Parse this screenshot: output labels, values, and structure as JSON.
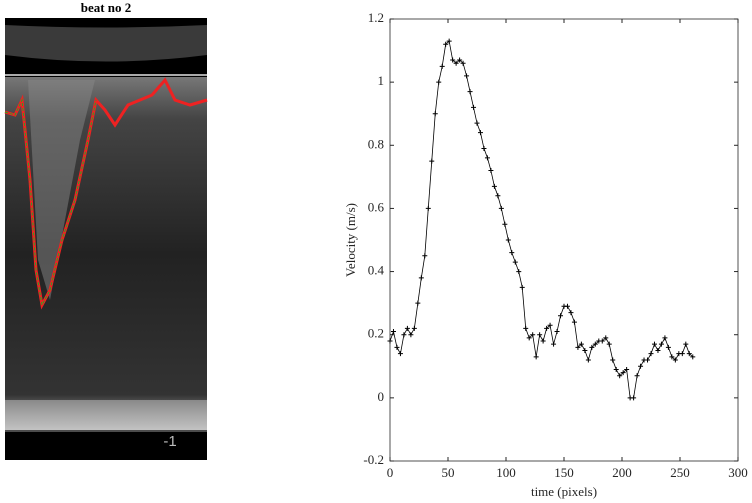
{
  "image": {
    "title": "beat no 2",
    "label": "-1"
  },
  "chart_data": {
    "type": "line",
    "xlabel": "time (pixels)",
    "ylabel": "Velocity (m/s)",
    "xlim": [
      0,
      300
    ],
    "xticks": [
      0,
      50,
      100,
      150,
      200,
      250,
      300
    ],
    "ylim": [
      -0.2,
      1.2
    ],
    "yticks": [
      -0.2,
      0,
      0.2,
      0.4,
      0.6,
      0.8,
      1,
      1.2
    ],
    "series": [
      {
        "color": "#000000",
        "x": [
          0,
          3,
          6,
          9,
          12,
          15,
          18,
          21,
          24,
          27,
          30,
          33,
          36,
          39,
          42,
          45,
          48,
          51,
          54,
          57,
          60,
          63,
          66,
          69,
          72,
          75,
          78,
          81,
          84,
          87,
          90,
          93,
          96,
          99,
          102,
          105,
          108,
          111,
          114,
          117,
          120,
          123,
          126,
          129,
          132,
          135,
          138,
          141,
          144,
          147,
          150,
          153,
          156,
          159,
          162,
          165,
          168,
          171,
          174,
          177,
          180,
          183,
          186,
          189,
          192,
          195,
          198,
          201,
          204,
          207,
          210,
          213,
          216,
          219,
          222,
          225,
          228,
          231,
          234,
          237,
          240,
          243,
          246,
          249,
          252,
          255,
          258,
          261
        ],
        "values": [
          0.18,
          0.21,
          0.16,
          0.14,
          0.2,
          0.22,
          0.2,
          0.22,
          0.3,
          0.38,
          0.45,
          0.6,
          0.75,
          0.9,
          1.0,
          1.05,
          1.12,
          1.13,
          1.07,
          1.06,
          1.07,
          1.06,
          1.02,
          0.97,
          0.92,
          0.87,
          0.84,
          0.79,
          0.76,
          0.72,
          0.67,
          0.64,
          0.6,
          0.55,
          0.5,
          0.46,
          0.43,
          0.4,
          0.35,
          0.22,
          0.19,
          0.2,
          0.13,
          0.2,
          0.18,
          0.22,
          0.23,
          0.17,
          0.21,
          0.26,
          0.29,
          0.29,
          0.27,
          0.24,
          0.16,
          0.17,
          0.15,
          0.12,
          0.16,
          0.17,
          0.18,
          0.18,
          0.19,
          0.17,
          0.12,
          0.09,
          0.07,
          0.08,
          0.09,
          0.0,
          0.0,
          0.07,
          0.1,
          0.12,
          0.12,
          0.14,
          0.17,
          0.15,
          0.17,
          0.19,
          0.16,
          0.13,
          0.12,
          0.14,
          0.14,
          0.17,
          0.14,
          0.13
        ]
      }
    ]
  }
}
